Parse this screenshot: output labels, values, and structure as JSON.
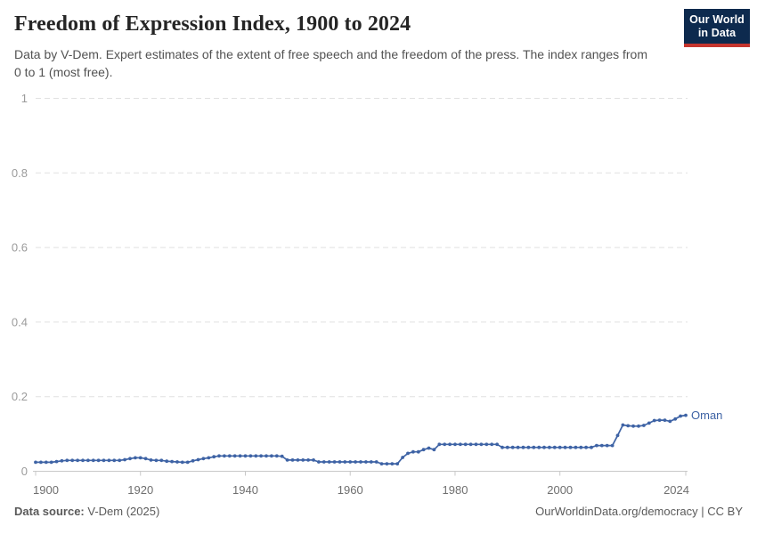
{
  "header": {
    "title": "Freedom of Expression Index, 1900 to 2024",
    "subtitle": "Data by V-Dem. Expert estimates of the extent of free speech and the freedom of the press. The index ranges from 0 to 1 (most free)."
  },
  "logo": {
    "line1": "Our World",
    "line2": "in Data"
  },
  "colors": {
    "line": "#3e63a5",
    "entity_label": "#3e63a5",
    "logo_navy": "#0d2a4e",
    "logo_red": "#c5352e",
    "gridline": "#e1e1e1",
    "axis": "#c8c8c8",
    "y_tick_label": "#9b9b9b",
    "x_tick_label": "#6f6f6f"
  },
  "chart_data": {
    "type": "line",
    "title": "Freedom of Expression Index, 1900 to 2024",
    "xlabel": "",
    "ylabel": "",
    "xlim": [
      1900,
      2024
    ],
    "ylim": [
      0,
      1
    ],
    "grid": "horizontal-dashed",
    "legend_position": "end-of-line-label",
    "x_start": 1900,
    "x_end": 2024,
    "x_step": 1,
    "y_ticks": [
      0,
      0.2,
      0.4,
      0.6,
      0.8,
      1
    ],
    "y_tick_labels": [
      "0",
      "0.2",
      "0.4",
      "0.6",
      "0.8",
      "1"
    ],
    "x_ticks": [
      1900,
      1920,
      1940,
      1960,
      1980,
      2000,
      2024
    ],
    "x_tick_labels": [
      "1900",
      "1920",
      "1940",
      "1960",
      "1980",
      "2000",
      "2024"
    ],
    "series": [
      {
        "name": "Oman",
        "values": [
          0.024,
          0.024,
          0.024,
          0.024,
          0.026,
          0.028,
          0.029,
          0.029,
          0.029,
          0.029,
          0.029,
          0.029,
          0.029,
          0.029,
          0.029,
          0.029,
          0.029,
          0.031,
          0.034,
          0.036,
          0.036,
          0.034,
          0.03,
          0.029,
          0.029,
          0.027,
          0.026,
          0.025,
          0.024,
          0.024,
          0.028,
          0.031,
          0.034,
          0.036,
          0.039,
          0.041,
          0.041,
          0.041,
          0.041,
          0.041,
          0.041,
          0.041,
          0.041,
          0.041,
          0.041,
          0.041,
          0.041,
          0.04,
          0.03,
          0.03,
          0.03,
          0.03,
          0.03,
          0.03,
          0.025,
          0.025,
          0.025,
          0.025,
          0.025,
          0.025,
          0.025,
          0.025,
          0.025,
          0.025,
          0.025,
          0.025,
          0.02,
          0.02,
          0.02,
          0.02,
          0.037,
          0.048,
          0.052,
          0.052,
          0.058,
          0.062,
          0.058,
          0.072,
          0.072,
          0.072,
          0.072,
          0.072,
          0.072,
          0.072,
          0.072,
          0.072,
          0.072,
          0.072,
          0.072,
          0.064,
          0.064,
          0.064,
          0.064,
          0.064,
          0.064,
          0.064,
          0.064,
          0.064,
          0.064,
          0.064,
          0.064,
          0.064,
          0.064,
          0.064,
          0.064,
          0.064,
          0.064,
          0.069,
          0.069,
          0.069,
          0.069,
          0.096,
          0.124,
          0.122,
          0.121,
          0.121,
          0.123,
          0.129,
          0.136,
          0.137,
          0.137,
          0.134,
          0.14,
          0.148,
          0.15
        ]
      }
    ]
  },
  "footer": {
    "source_label": "Data source:",
    "source_value": " V-Dem (2025)",
    "right_text": "OurWorldinData.org/democracy | CC BY"
  }
}
